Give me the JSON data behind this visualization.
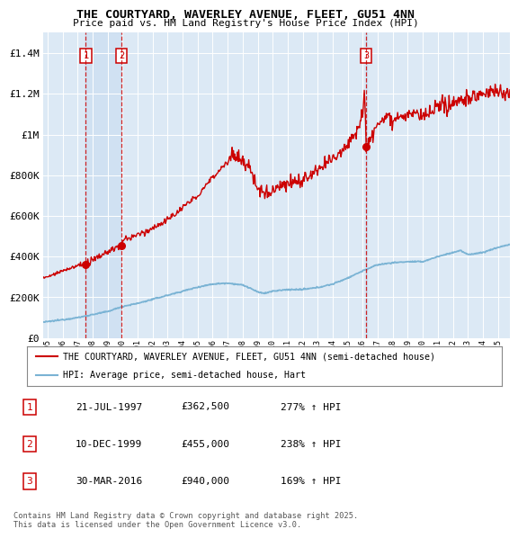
{
  "title_line1": "THE COURTYARD, WAVERLEY AVENUE, FLEET, GU51 4NN",
  "title_line2": "Price paid vs. HM Land Registry's House Price Index (HPI)",
  "xlim": [
    1994.7,
    2025.8
  ],
  "ylim": [
    0,
    1500000
  ],
  "yticks": [
    0,
    200000,
    400000,
    600000,
    800000,
    1000000,
    1200000,
    1400000
  ],
  "ytick_labels": [
    "£0",
    "£200K",
    "£400K",
    "£600K",
    "£800K",
    "£1M",
    "£1.2M",
    "£1.4M"
  ],
  "sale_dates": [
    1997.55,
    1999.94,
    2016.24
  ],
  "sale_prices": [
    362500,
    455000,
    940000
  ],
  "sale_labels": [
    "1",
    "2",
    "3"
  ],
  "hpi_color": "#7ab3d4",
  "sale_color": "#cc0000",
  "bg_color": "#dce9f5",
  "shade_color": "#c8ddf0",
  "grid_color": "#ffffff",
  "legend_entries": [
    "THE COURTYARD, WAVERLEY AVENUE, FLEET, GU51 4NN (semi-detached house)",
    "HPI: Average price, semi-detached house, Hart"
  ],
  "table_rows": [
    [
      "1",
      "21-JUL-1997",
      "£362,500",
      "277% ↑ HPI"
    ],
    [
      "2",
      "10-DEC-1999",
      "£455,000",
      "238% ↑ HPI"
    ],
    [
      "3",
      "30-MAR-2016",
      "£940,000",
      "169% ↑ HPI"
    ]
  ],
  "footnote": "Contains HM Land Registry data © Crown copyright and database right 2025.\nThis data is licensed under the Open Government Licence v3.0."
}
